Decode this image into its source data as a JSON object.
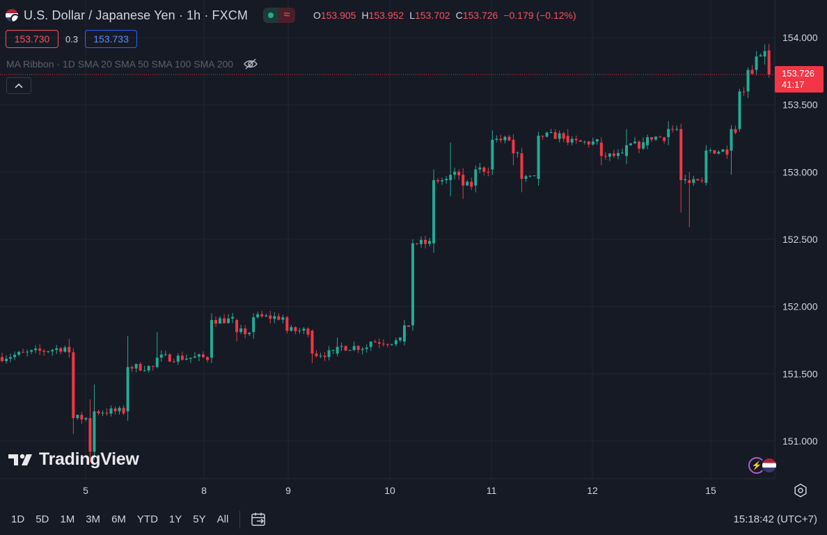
{
  "header": {
    "symbol_title": "U.S. Dollar / Japanese Yen · 1h · FXCM",
    "status_icon": "market-open-dot",
    "ohlc": [
      {
        "key": "O",
        "value": "153.905"
      },
      {
        "key": "H",
        "value": "153.952"
      },
      {
        "key": "L",
        "value": "153.702"
      },
      {
        "key": "C",
        "value": "153.726"
      }
    ],
    "change": "−0.179 (−0.12%)"
  },
  "quote": {
    "sell": "153.730",
    "spread": "0.3",
    "buy": "153.733"
  },
  "indicator": {
    "label": "MA Ribbon · 1D SMA 20 SMA 50 SMA 100 SMA 200",
    "icon": "eye-off-icon"
  },
  "last_price": {
    "price": "153.726",
    "countdown": "41:17"
  },
  "logo": {
    "text": "TradingView"
  },
  "bottom_bar": {
    "timeframes": [
      "1D",
      "5D",
      "1M",
      "3M",
      "6M",
      "YTD",
      "1Y",
      "5Y",
      "All"
    ],
    "clock": "15:18:42 (UTC+7)"
  },
  "colors": {
    "up": "#22ab94",
    "down": "#f23645",
    "background": "#161a25",
    "grid": "#232734",
    "axis_text": "#d1d4dc"
  },
  "chart_data": {
    "type": "candlestick",
    "ylim": [
      150.72,
      154.28
    ],
    "y_ticks": [
      "154.000",
      "153.500",
      "153.000",
      "152.500",
      "152.000",
      "151.500",
      "151.000"
    ],
    "x_ticks": [
      "5",
      "8",
      "9",
      "10",
      "11",
      "12",
      "15"
    ],
    "anchors": [
      [
        151.7,
        151.76,
        151.62,
        151.66
      ],
      [
        151.66,
        151.69,
        151.05,
        151.17
      ],
      [
        151.17,
        151.31,
        150.84,
        150.92
      ],
      [
        150.92,
        151.42,
        150.86,
        151.22
      ],
      [
        151.22,
        151.78,
        151.15,
        151.55
      ],
      [
        151.55,
        151.81,
        151.54,
        151.62
      ],
      [
        151.62,
        151.95,
        151.58,
        151.9
      ],
      [
        151.9,
        151.91,
        151.74,
        151.81
      ],
      [
        151.81,
        151.95,
        151.76,
        151.92
      ],
      [
        151.92,
        151.93,
        151.8,
        151.82
      ],
      [
        151.82,
        151.83,
        151.58,
        151.65
      ],
      [
        151.65,
        151.77,
        151.63,
        151.7
      ],
      [
        151.7,
        151.73,
        151.67,
        151.74
      ],
      [
        151.74,
        151.9,
        151.71,
        151.86
      ],
      [
        151.86,
        152.5,
        151.82,
        152.47
      ],
      [
        152.47,
        153.02,
        152.4,
        152.94
      ],
      [
        152.94,
        153.22,
        152.82,
        152.98
      ],
      [
        152.98,
        153.03,
        152.8,
        152.9
      ],
      [
        152.9,
        153.05,
        152.85,
        153.02
      ],
      [
        153.02,
        153.31,
        152.98,
        153.24
      ],
      [
        153.24,
        153.28,
        153.05,
        153.14
      ],
      [
        153.14,
        153.18,
        152.85,
        152.95
      ],
      [
        152.95,
        153.3,
        152.9,
        153.27
      ],
      [
        153.27,
        153.32,
        153.2,
        153.22
      ],
      [
        153.22,
        153.26,
        153.05,
        153.12
      ],
      [
        153.12,
        153.32,
        153.06,
        153.2
      ],
      [
        153.2,
        153.28,
        153.17,
        153.26
      ],
      [
        153.26,
        153.38,
        153.2,
        153.32
      ],
      [
        153.32,
        153.36,
        152.7,
        152.94
      ],
      [
        152.94,
        153.0,
        152.59,
        152.92
      ],
      [
        152.92,
        153.2,
        152.9,
        153.16
      ],
      [
        153.16,
        153.35,
        152.98,
        153.32
      ],
      [
        153.32,
        153.62,
        153.3,
        153.6
      ],
      [
        153.6,
        153.78,
        153.55,
        153.76
      ],
      [
        153.76,
        153.9,
        153.72,
        153.86
      ],
      [
        153.86,
        153.95,
        153.8,
        153.9
      ],
      [
        153.905,
        153.952,
        153.702,
        153.726
      ]
    ]
  }
}
